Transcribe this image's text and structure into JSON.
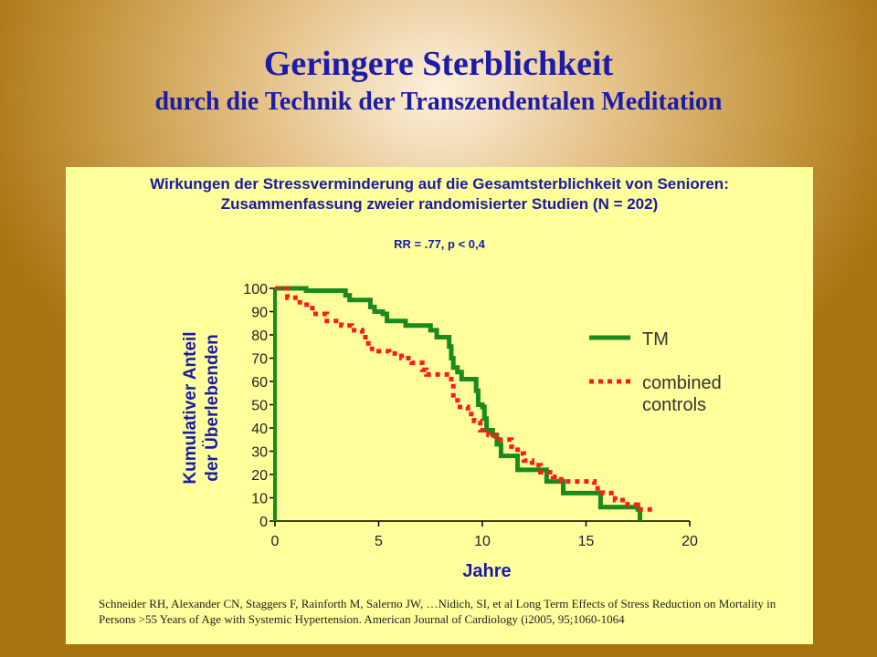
{
  "slide": {
    "title": "Geringere Sterblichkeit",
    "subtitle": "durch die Technik der Transzendentalen Meditation"
  },
  "panel": {
    "heading_line1": "Wirkungen der Stressverminderung auf die Gesamtsterblichkeit von Senioren:",
    "heading_line2": "Zusammenfassung zweier randomisierter Studien (N = 202)",
    "stat": "RR = .77, p < 0,4",
    "reference": "Schneider RH, Alexander CN, Staggers F, Rainforth M, Salerno JW, …Nidich, SI, et al  Long Term Effects of Stress Reduction on Mortality in Persons >55 Years of Age with Systemic Hypertension. American Journal of Cardiology (i2005, 95;1060-1064"
  },
  "chart_data": {
    "type": "line",
    "step": true,
    "xlabel": "Jahre",
    "ylabel_line1": "Kumulativer Anteil",
    "ylabel_line2": "der Überlebenden",
    "xlim": [
      0,
      20
    ],
    "ylim": [
      0,
      100
    ],
    "xticks": [
      "0",
      "5",
      "10",
      "15",
      "20"
    ],
    "yticks": [
      "0",
      "10",
      "20",
      "30",
      "40",
      "50",
      "60",
      "70",
      "80",
      "90",
      "100"
    ],
    "legend_position": "right",
    "grid": false,
    "series": [
      {
        "name": "TM",
        "color": "#1a8a1a",
        "style": "solid",
        "points": [
          [
            0,
            100
          ],
          [
            1.5,
            99
          ],
          [
            3.4,
            97
          ],
          [
            3.6,
            95
          ],
          [
            4.6,
            92
          ],
          [
            4.8,
            90
          ],
          [
            5.2,
            89
          ],
          [
            5.4,
            86
          ],
          [
            6.3,
            84
          ],
          [
            7.5,
            82
          ],
          [
            7.8,
            79
          ],
          [
            8.4,
            75
          ],
          [
            8.5,
            70
          ],
          [
            8.6,
            66
          ],
          [
            8.8,
            64
          ],
          [
            9.0,
            61
          ],
          [
            9.7,
            56
          ],
          [
            9.8,
            50
          ],
          [
            10.0,
            49
          ],
          [
            10.1,
            44
          ],
          [
            10.2,
            39
          ],
          [
            10.5,
            37
          ],
          [
            10.7,
            33
          ],
          [
            10.9,
            28
          ],
          [
            11.7,
            22
          ],
          [
            13.1,
            17
          ],
          [
            13.9,
            12
          ],
          [
            15.7,
            6
          ],
          [
            17.5,
            5
          ],
          [
            17.6,
            0
          ]
        ]
      },
      {
        "name": "combined controls",
        "color": "#ff1a1a",
        "style": "dotted",
        "points": [
          [
            0,
            100
          ],
          [
            0.6,
            96
          ],
          [
            1.2,
            93
          ],
          [
            1.8,
            89
          ],
          [
            2.5,
            86
          ],
          [
            3.2,
            84
          ],
          [
            3.7,
            82
          ],
          [
            4.2,
            79
          ],
          [
            4.5,
            74
          ],
          [
            5.0,
            73
          ],
          [
            5.5,
            72
          ],
          [
            6.1,
            70
          ],
          [
            6.6,
            68
          ],
          [
            7.1,
            65
          ],
          [
            7.3,
            63
          ],
          [
            8.5,
            59
          ],
          [
            8.6,
            54
          ],
          [
            8.8,
            49
          ],
          [
            9.3,
            46
          ],
          [
            9.6,
            43
          ],
          [
            9.9,
            39
          ],
          [
            10.3,
            37
          ],
          [
            10.6,
            35
          ],
          [
            11.4,
            32
          ],
          [
            11.7,
            29
          ],
          [
            12.0,
            26
          ],
          [
            12.4,
            24
          ],
          [
            12.8,
            21
          ],
          [
            13.4,
            19
          ],
          [
            13.8,
            17
          ],
          [
            15.4,
            14
          ],
          [
            15.8,
            12
          ],
          [
            16.4,
            9
          ],
          [
            17.0,
            7
          ],
          [
            17.5,
            5
          ],
          [
            18.3,
            5
          ]
        ]
      }
    ]
  }
}
